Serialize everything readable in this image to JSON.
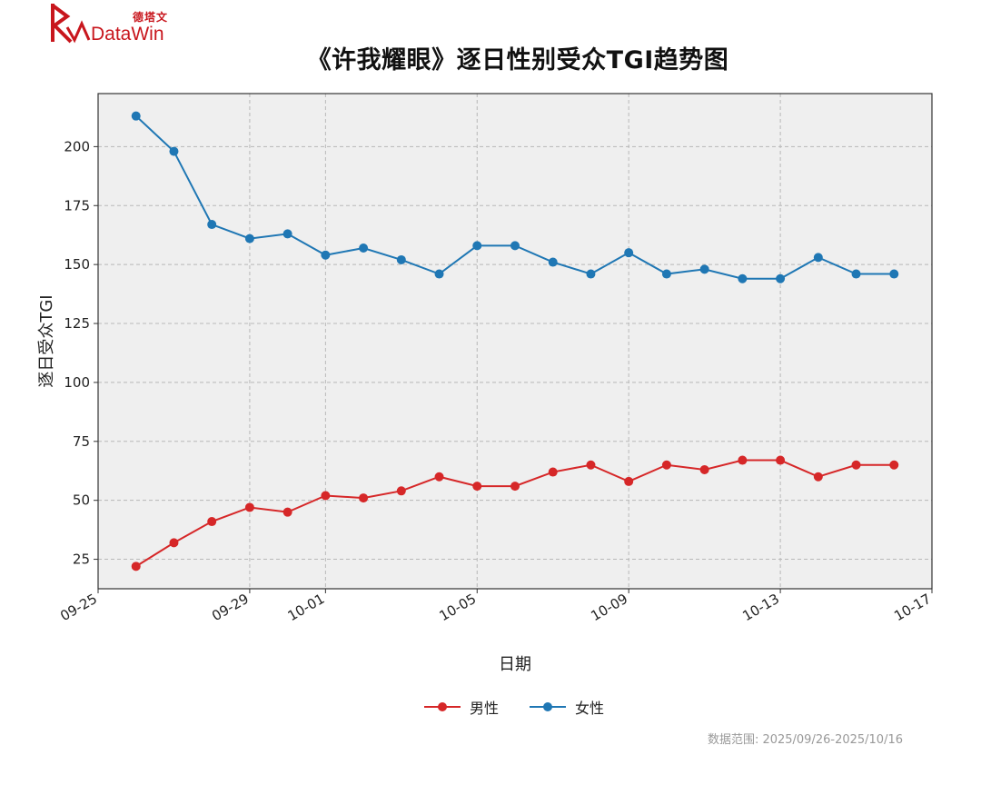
{
  "brand": {
    "name_cn": "德塔文",
    "name_en": "DataWin",
    "color": "#c8161d"
  },
  "chart_data": {
    "type": "line",
    "title": "《许我耀眼》逐日性别受众TGI趋势图",
    "xlabel": "日期",
    "ylabel": "逐日受众TGI",
    "x": [
      "09-26",
      "09-27",
      "09-28",
      "09-29",
      "09-30",
      "10-01",
      "10-02",
      "10-03",
      "10-04",
      "10-05",
      "10-06",
      "10-07",
      "10-08",
      "10-09",
      "10-10",
      "10-11",
      "10-12",
      "10-13",
      "10-14",
      "10-15",
      "10-16"
    ],
    "xticks": [
      "09-25",
      "09-29",
      "10-01",
      "10-05",
      "10-09",
      "10-13",
      "10-17"
    ],
    "yticks": [
      25,
      50,
      75,
      100,
      125,
      150,
      175,
      200
    ],
    "xlim": [
      "09-25",
      "10-17"
    ],
    "ylim": [
      12.5,
      222.5
    ],
    "grid": true,
    "legend": "bottom-center",
    "series": [
      {
        "name": "男性",
        "color": "#d62728",
        "values": [
          22,
          32,
          41,
          47,
          45,
          52,
          51,
          54,
          60,
          56,
          56,
          62,
          65,
          58,
          65,
          63,
          67,
          67,
          60,
          65,
          65
        ]
      },
      {
        "name": "女性",
        "color": "#1f77b4",
        "values": [
          213,
          198,
          167,
          161,
          163,
          154,
          157,
          152,
          146,
          158,
          158,
          151,
          146,
          155,
          146,
          148,
          144,
          144,
          153,
          146,
          146
        ]
      }
    ]
  },
  "footnote": "数据范围: 2025/09/26-2025/10/16"
}
